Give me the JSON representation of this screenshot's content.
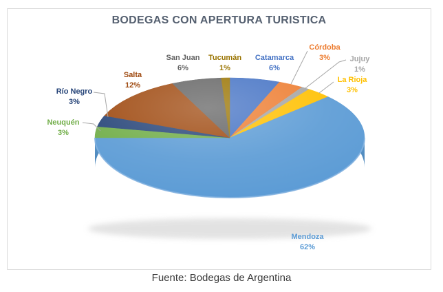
{
  "figure": {
    "caption": "Fuente: Bodegas de Argentina"
  },
  "chart_data": {
    "type": "pie",
    "style": "3d",
    "title": "BODEGAS CON APERTURA TURISTICA",
    "unit": "percent",
    "legend": "none",
    "data_labels": "category name and percent, outside slices",
    "start_angle_deg": 0,
    "direction": "clockwise",
    "slices": [
      {
        "label": "Catamarca",
        "value": 6,
        "pct_label": "6%",
        "color": "#4472C4"
      },
      {
        "label": "Córdoba",
        "value": 3,
        "pct_label": "3%",
        "color": "#ED7D31"
      },
      {
        "label": "Jujuy",
        "value": 1,
        "pct_label": "1%",
        "color": "#A5A5A5"
      },
      {
        "label": "La Rioja",
        "value": 3,
        "pct_label": "3%",
        "color": "#FFC000"
      },
      {
        "label": "Mendoza",
        "value": 62,
        "pct_label": "62%",
        "color": "#5B9BD5"
      },
      {
        "label": "Neuquén",
        "value": 3,
        "pct_label": "3%",
        "color": "#70AD47"
      },
      {
        "label": "Río Negro",
        "value": 3,
        "pct_label": "3%",
        "color": "#264478"
      },
      {
        "label": "Salta",
        "value": 12,
        "pct_label": "12%",
        "color": "#9E480E"
      },
      {
        "label": "San Juan",
        "value": 6,
        "pct_label": "6%",
        "color": "#636363"
      },
      {
        "label": "Tucumán",
        "value": 1,
        "pct_label": "1%",
        "color": "#997300"
      }
    ],
    "colors": {
      "title_text": "#556070",
      "caption_text": "#3A3A3A",
      "frame_border": "#DADADA",
      "leader_line": "#A6A6A6",
      "background": "#FFFFFF",
      "side_wall_top": "#5B98CC",
      "side_wall_bottom": "#2F5C88"
    }
  }
}
